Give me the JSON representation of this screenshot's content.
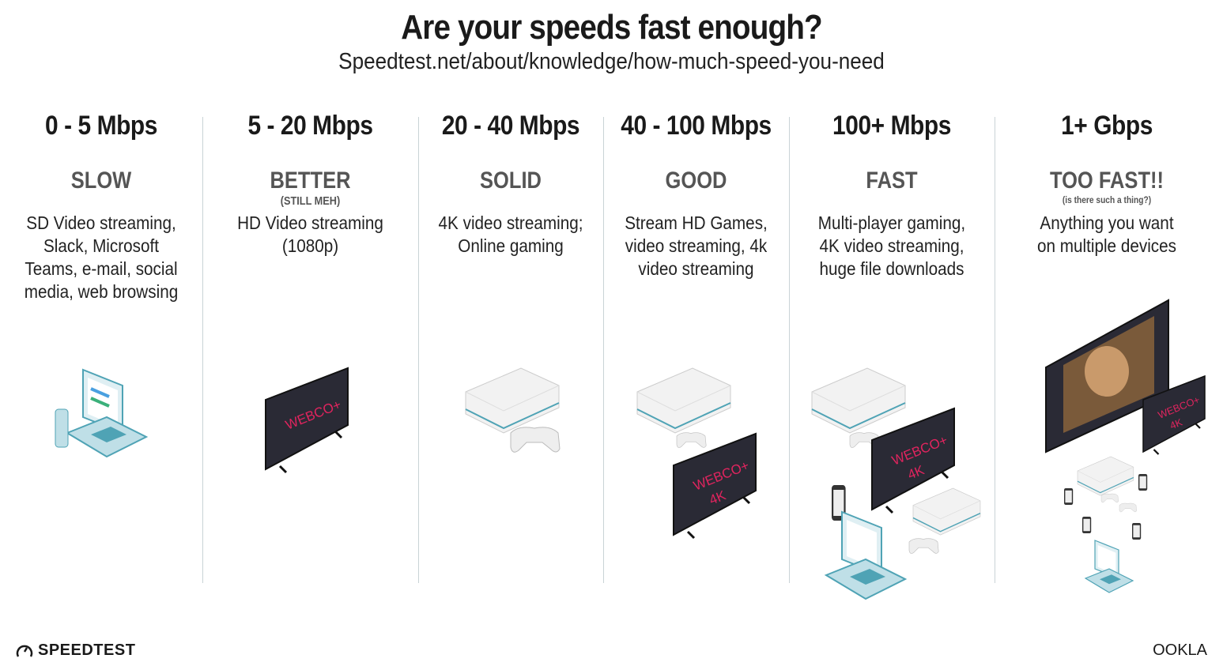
{
  "header": {
    "title": "Are your speeds fast enough?",
    "subtitle": "Speedtest.net/about/knowledge/how-much-speed-you-need"
  },
  "tiers": [
    {
      "speed": "0 - 5 Mbps",
      "label": "SLOW",
      "note": "",
      "description": [
        "SD Video streaming,",
        "Slack, Microsoft",
        "Teams, e-mail, social",
        "media, web browsing"
      ],
      "devices": [
        "laptop-icon",
        "phone-icon"
      ]
    },
    {
      "speed": "5 - 20 Mbps",
      "label": "BETTER",
      "note": "(STILL MEH)",
      "description": [
        "HD Video streaming",
        "(1080p)"
      ],
      "devices": [
        "tv-icon"
      ]
    },
    {
      "speed": "20 - 40 Mbps",
      "label": "SOLID",
      "note": "",
      "description": [
        "4K video streaming;",
        "Online gaming"
      ],
      "devices": [
        "game-console-icon",
        "controller-icon"
      ]
    },
    {
      "speed": "40 - 100 Mbps",
      "label": "GOOD",
      "note": "",
      "description": [
        "Stream HD Games,",
        "video streaming, 4k",
        "video streaming"
      ],
      "devices": [
        "game-console-icon",
        "controller-icon",
        "tv-4k-icon"
      ]
    },
    {
      "speed": "100+ Mbps",
      "label": "FAST",
      "note": "",
      "description": [
        "Multi-player gaming,",
        "4K video streaming,",
        "huge file downloads"
      ],
      "devices": [
        "game-console-icon",
        "tv-4k-icon",
        "phone-icon",
        "laptop-icon",
        "game-console-icon"
      ]
    },
    {
      "speed": "1+ Gbps",
      "label": "TOO FAST!!",
      "note": "(is there such a thing?)",
      "description": [
        "Anything you want",
        "on multiple devices"
      ],
      "devices": [
        "tv-large-icon",
        "tv-4k-icon",
        "game-console-icon",
        "phone-icon",
        "laptop-icon"
      ]
    }
  ],
  "screen_brand": {
    "name": "WEBCO+",
    "badge": "4K"
  },
  "footer": {
    "left_logo": "SPEEDTEST",
    "right_logo": "OOKLA"
  },
  "colors": {
    "text": "#1a1a1a",
    "category": "#555555",
    "divider": "#c9d3d6",
    "accent_teal": "#4fa3b5",
    "screen_text": "#e0245e"
  }
}
